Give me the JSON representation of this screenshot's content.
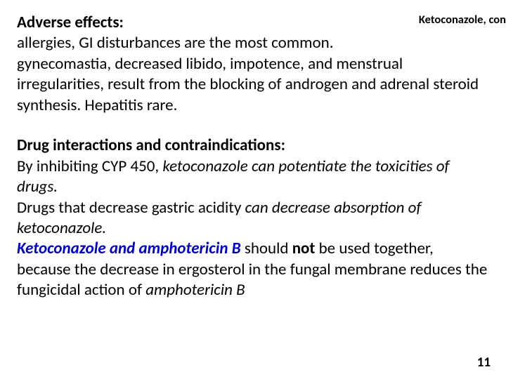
{
  "colors": {
    "background": "#ffffff",
    "text": "#000000",
    "link_blue": "#0000cc"
  },
  "typography": {
    "body_fontsize": 23,
    "line_height": 1.28,
    "small_note_fontsize": 16.5,
    "page_number_fontsize": 19,
    "font_family": "Calibri, Arial, sans-serif"
  },
  "top_right_note": "Ketoconazole, con",
  "section1": {
    "heading": "Adverse effects:",
    "body_line1": "allergies, GI disturbances are the most common.",
    "body_line2": "gynecomastia, decreased libido, impotence, and menstrual irregularities, result from the blocking of androgen and adrenal steroid synthesis. Hepatitis rare."
  },
  "section2": {
    "heading": "Drug interactions and contraindications:",
    "line1_pre": "By inhibiting CYP 450, ",
    "line1_ital": "ketoconazole can potentiate the toxicities of drugs.",
    "line2_pre": "Drugs that decrease gastric acidity ",
    "line2_ital": "can decrease absorption of ketoconazole.",
    "line3_lead": "Ketoconazole and amphotericin B ",
    "line3_mid1": "should ",
    "line3_not": "not",
    "line3_mid2": " be used together, because the decrease in ergosterol in the fungal membrane reduces the fungicidal action of ",
    "line3_tail": "amphotericin B"
  },
  "page_number": "11"
}
